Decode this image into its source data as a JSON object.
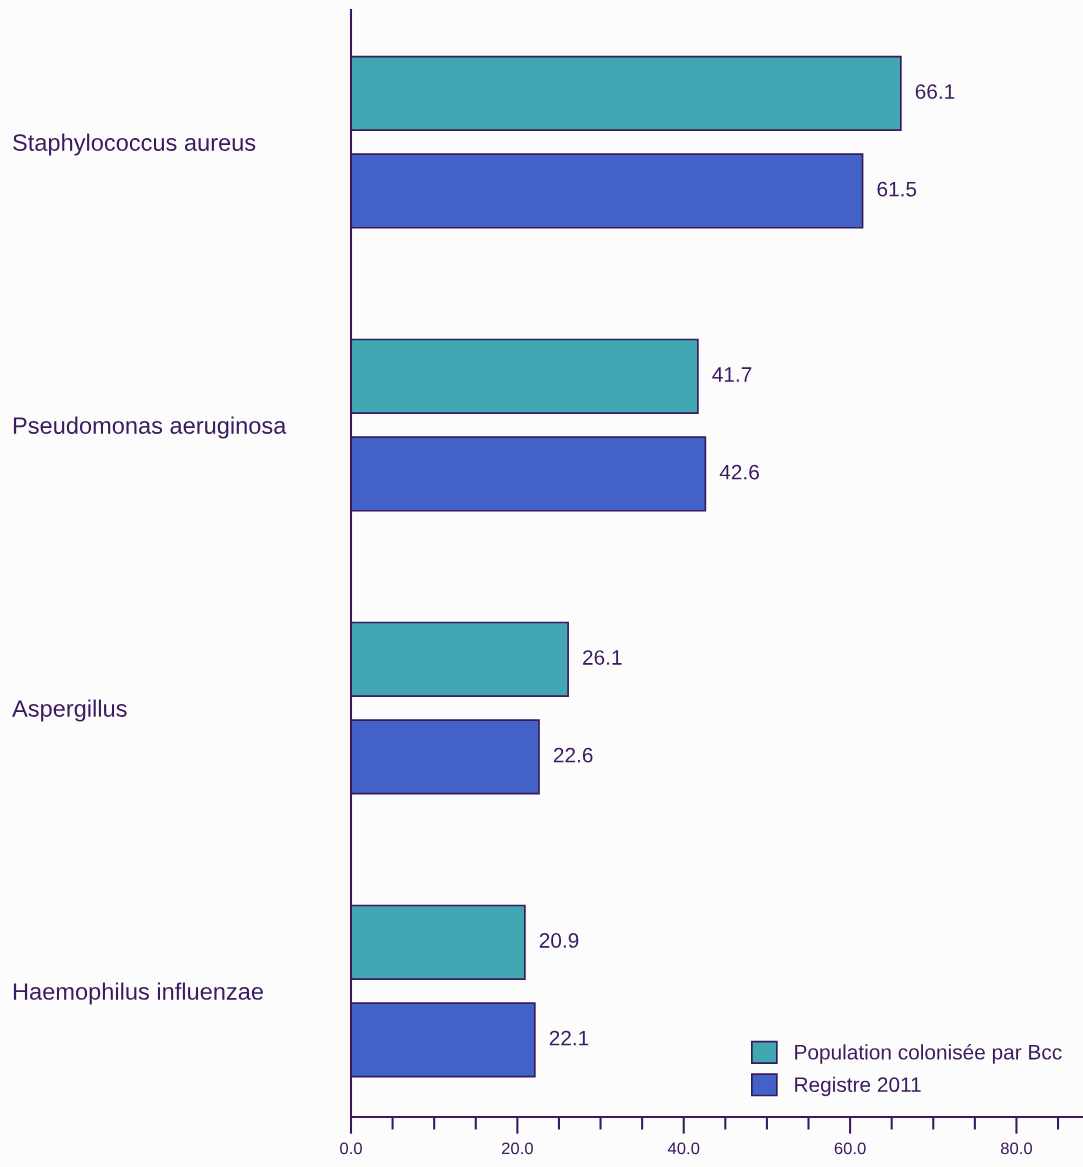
{
  "chart_data": {
    "type": "bar",
    "orientation": "horizontal",
    "categories": [
      "Staphylococcus aureus",
      "Pseudomonas aeruginosa",
      "Aspergillus",
      "Haemophilus influenzae"
    ],
    "series": [
      {
        "name": "Population colonisée par Bcc",
        "color": "#41a7b3",
        "values": [
          66.1,
          41.7,
          26.1,
          20.9
        ]
      },
      {
        "name": "Registre 2011",
        "color": "#4262c8",
        "values": [
          61.5,
          42.6,
          22.6,
          22.1
        ]
      }
    ],
    "xlim": [
      0,
      88
    ],
    "xticks": [
      {
        "value": 0,
        "label": "0.0"
      },
      {
        "value": 5,
        "label": null
      },
      {
        "value": 10,
        "label": null
      },
      {
        "value": 15,
        "label": null
      },
      {
        "value": 20,
        "label": "20.0"
      },
      {
        "value": 25,
        "label": null
      },
      {
        "value": 30,
        "label": null
      },
      {
        "value": 35,
        "label": null
      },
      {
        "value": 40,
        "label": "40.0"
      },
      {
        "value": 45,
        "label": null
      },
      {
        "value": 50,
        "label": null
      },
      {
        "value": 55,
        "label": null
      },
      {
        "value": 60,
        "label": "60.0"
      },
      {
        "value": 65,
        "label": null
      },
      {
        "value": 70,
        "label": null
      },
      {
        "value": 75,
        "label": null
      },
      {
        "value": 80,
        "label": "80.0"
      },
      {
        "value": 85,
        "label": null
      }
    ],
    "data_labels": true,
    "grid": false,
    "legend": "bottom right"
  }
}
